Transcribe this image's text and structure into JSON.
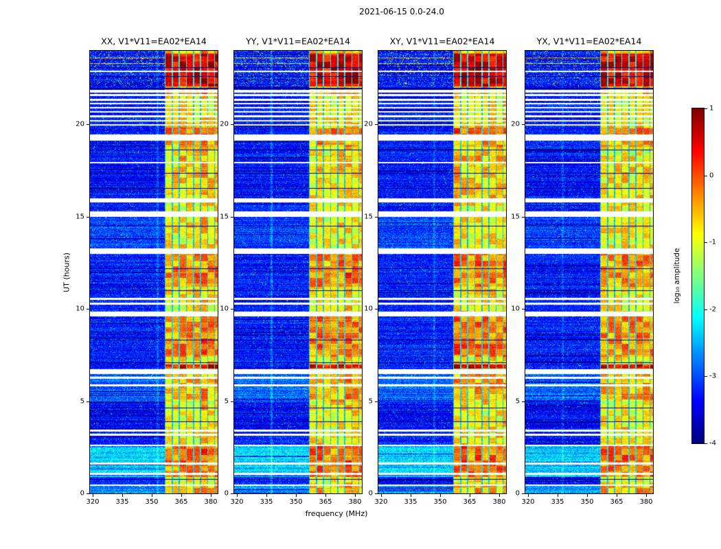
{
  "chart_data": {
    "type": "heatmap",
    "title": "2021-06-15 0.0-24.0",
    "xlabel": "frequency (MHz)",
    "ylabel": "UT (hours)",
    "colorbar_label": "log₁₀ amplitude",
    "colormap": "jet",
    "x_range": [
      318.5,
      383.5
    ],
    "x_ticks": [
      320,
      335,
      350,
      365,
      380
    ],
    "y_range": [
      0,
      24
    ],
    "y_ticks": [
      0,
      5,
      10,
      15,
      20
    ],
    "colorbar_range": [
      -4,
      1
    ],
    "colorbar_ticks": [
      1,
      0,
      -1,
      -2,
      -3,
      -4
    ],
    "panels": [
      {
        "title": "XX, V1*V11=EA02*EA14",
        "pol": "xx",
        "seed": 11,
        "vlines": [
          [
            352.8,
            0.35
          ]
        ]
      },
      {
        "title": "YY, V1*V11=EA02*EA14",
        "pol": "yy",
        "seed": 22,
        "vlines": [
          [
            337.5,
            0.45
          ]
        ]
      },
      {
        "title": "XY, V1*V11=EA02*EA14",
        "pol": "xy",
        "seed": 33,
        "vlines": [
          [
            347.0,
            0.3
          ]
        ]
      },
      {
        "title": "YX, V1*V11=EA02*EA14",
        "pol": "yx",
        "seed": 44,
        "vlines": [
          [
            337.5,
            0.3
          ]
        ]
      }
    ],
    "background_level": -3.25,
    "band_mhz": [
      356.5,
      383.5
    ],
    "band_level": -0.8,
    "band_channel_mhz": 3.6,
    "band_sep_mhz": 0.55,
    "bg_bands": [
      {
        "t": [
          0.0,
          0.45
        ],
        "level": -2.7
      },
      {
        "t": [
          0.9,
          2.65
        ],
        "level": -2.35
      },
      {
        "t": [
          3.4,
          5.0
        ],
        "level": -3.35
      },
      {
        "t": [
          5.0,
          6.5
        ],
        "level": -2.85
      },
      {
        "t": [
          13.3,
          15.05
        ],
        "level": -3.05
      },
      {
        "t": [
          16.0,
          18.3
        ],
        "level": -3.3
      },
      {
        "t": [
          22.05,
          24.0
        ],
        "level": -3.3
      }
    ],
    "hot_rows": [
      [
        22.05,
        23.85,
        1.35
      ],
      [
        23.85,
        24.0,
        0.3
      ],
      [
        21.6,
        22.05,
        0.35
      ],
      [
        19.46,
        19.85,
        0.6
      ],
      [
        18.8,
        19.12,
        0.35
      ],
      [
        16.0,
        18.3,
        0.15
      ],
      [
        11.2,
        13.2,
        0.5
      ],
      [
        7.4,
        9.6,
        0.5
      ],
      [
        6.78,
        6.98,
        1.3
      ],
      [
        5.0,
        6.5,
        0.3
      ],
      [
        0.9,
        2.6,
        0.65
      ],
      [
        0.0,
        0.45,
        0.3
      ]
    ],
    "gaps": [
      [
        22.88,
        0.05
      ],
      [
        21.8,
        0.07
      ],
      [
        21.6,
        0.04
      ],
      [
        21.34,
        0.05
      ],
      [
        21.12,
        0.04
      ],
      [
        20.92,
        0.04
      ],
      [
        20.68,
        0.04
      ],
      [
        20.44,
        0.05
      ],
      [
        20.2,
        0.04
      ],
      [
        19.98,
        0.04
      ],
      [
        19.29,
        0.17
      ],
      [
        17.92,
        0.04
      ],
      [
        15.88,
        0.12
      ],
      [
        15.15,
        0.15
      ],
      [
        13.15,
        0.15
      ],
      [
        10.55,
        0.05
      ],
      [
        10.3,
        0.05
      ],
      [
        9.72,
        0.13
      ],
      [
        6.62,
        0.13
      ],
      [
        6.28,
        0.05
      ],
      [
        5.86,
        0.05
      ],
      [
        3.4,
        0.05
      ],
      [
        3.18,
        0.05
      ],
      [
        2.62,
        0.04
      ],
      [
        1.62,
        0.04
      ],
      [
        1.05,
        0.05
      ],
      [
        0.45,
        0.05
      ]
    ],
    "dark_rows": [
      [
        23.1,
        0.02
      ],
      [
        22.6,
        0.02
      ],
      [
        21.95,
        0.025
      ],
      [
        18.62,
        0.025
      ],
      [
        17.35,
        0.02
      ],
      [
        16.55,
        0.02
      ],
      [
        14.5,
        0.02
      ],
      [
        12.2,
        0.02
      ],
      [
        11.0,
        0.02
      ],
      [
        8.3,
        0.02
      ],
      [
        7.1,
        0.02
      ],
      [
        4.62,
        0.02
      ],
      [
        3.9,
        0.02
      ],
      [
        0.75,
        0.02
      ]
    ],
    "red_rows": [
      [
        23.6,
        0.02,
        2.6
      ],
      [
        23.32,
        0.02,
        2.4
      ]
    ]
  }
}
